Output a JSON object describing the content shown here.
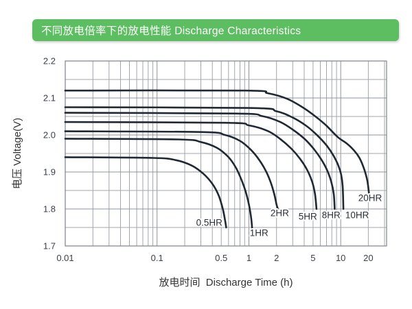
{
  "title_bar": {
    "text": "不同放电倍率下的放电性能 Discharge Characteristics",
    "bg_color": "#5cbd61",
    "text_color": "#ffffff"
  },
  "chart_data": {
    "type": "line",
    "title": "不同放电倍率下的放电性能 Discharge Characteristics",
    "xlabel": "放电时间  Discharge Time (h)",
    "ylabel": "电压 Voltage(V)",
    "x_scale": "log",
    "xlim": [
      0.01,
      31.6
    ],
    "ylim": [
      1.7,
      2.2
    ],
    "x_ticks": [
      {
        "v": 0.01,
        "label": "0.01"
      },
      {
        "v": 0.1,
        "label": "0.1"
      },
      {
        "v": 0.5,
        "label": "0.5"
      },
      {
        "v": 1,
        "label": "1"
      },
      {
        "v": 2,
        "label": "2"
      },
      {
        "v": 5,
        "label": "5"
      },
      {
        "v": 10,
        "label": "10"
      },
      {
        "v": 20,
        "label": "20"
      }
    ],
    "y_ticks": [
      {
        "v": 2.2,
        "label": "2.2"
      },
      {
        "v": 2.1,
        "label": "2.1"
      },
      {
        "v": 2.0,
        "label": "2.0"
      },
      {
        "v": 1.9,
        "label": "1.9"
      },
      {
        "v": 1.8,
        "label": "1.8"
      },
      {
        "v": 1.7,
        "label": "1.7"
      }
    ],
    "y_minor_step": 0.05,
    "grid": true,
    "legend": "inline-curve-labels",
    "colors": {
      "curve": "#202833",
      "grid": "#a2a6ad",
      "grid_major": "#8e939b",
      "axis": "#7c818a",
      "text": "#3b3f47",
      "label_text": "#2b303a"
    },
    "series": [
      {
        "name": "20HR",
        "label_pos": [
          20.9,
          1.83
        ],
        "points": [
          [
            0.01,
            2.12
          ],
          [
            0.9,
            2.12
          ],
          [
            1.6,
            2.113
          ],
          [
            2.6,
            2.098
          ],
          [
            4,
            2.072
          ],
          [
            5.5,
            2.047
          ],
          [
            7,
            2.025
          ],
          [
            9.3,
            1.994
          ],
          [
            11.5,
            1.978
          ],
          [
            14,
            1.958
          ],
          [
            16,
            1.938
          ],
          [
            18,
            1.908
          ],
          [
            19.5,
            1.876
          ],
          [
            20.3,
            1.843
          ]
        ]
      },
      {
        "name": "10HR",
        "label_pos": [
          15.1,
          1.783
        ],
        "points": [
          [
            0.01,
            2.075
          ],
          [
            1.0,
            2.073
          ],
          [
            2,
            2.064
          ],
          [
            3,
            2.047
          ],
          [
            4.2,
            2.025
          ],
          [
            5.5,
            2.0
          ],
          [
            7,
            1.972
          ],
          [
            8.3,
            1.945
          ],
          [
            9.4,
            1.918
          ],
          [
            10.1,
            1.893
          ],
          [
            10.5,
            1.862
          ],
          [
            10.7,
            1.8
          ]
        ]
      },
      {
        "name": "8HR",
        "label_pos": [
          7.87,
          1.783
        ],
        "points": [
          [
            0.01,
            2.06
          ],
          [
            0.7,
            2.058
          ],
          [
            1.4,
            2.051
          ],
          [
            2.2,
            2.035
          ],
          [
            3.1,
            2.012
          ],
          [
            4.1,
            1.988
          ],
          [
            5.1,
            1.962
          ],
          [
            6.1,
            1.935
          ],
          [
            7.1,
            1.905
          ],
          [
            7.9,
            1.873
          ],
          [
            8.4,
            1.84
          ],
          [
            8.6,
            1.8
          ]
        ]
      },
      {
        "name": "5HR",
        "label_pos": [
          4.38,
          1.78
        ],
        "points": [
          [
            0.01,
            2.035
          ],
          [
            0.55,
            2.033
          ],
          [
            1.0,
            2.026
          ],
          [
            1.6,
            2.011
          ],
          [
            2.2,
            1.989
          ],
          [
            2.9,
            1.963
          ],
          [
            3.6,
            1.936
          ],
          [
            4.3,
            1.906
          ],
          [
            4.9,
            1.873
          ],
          [
            5.25,
            1.84
          ],
          [
            5.45,
            1.8
          ]
        ]
      },
      {
        "name": "2HR",
        "label_pos": [
          2.17,
          1.789
        ],
        "points": [
          [
            0.01,
            2.01
          ],
          [
            0.3,
            2.008
          ],
          [
            0.55,
            2.0
          ],
          [
            0.8,
            1.984
          ],
          [
            1.05,
            1.96
          ],
          [
            1.3,
            1.932
          ],
          [
            1.55,
            1.9
          ],
          [
            1.75,
            1.868
          ],
          [
            1.9,
            1.838
          ],
          [
            2.0,
            1.812
          ],
          [
            2.07,
            1.8
          ]
        ]
      },
      {
        "name": "1HR",
        "label_pos": [
          1.29,
          1.735
        ],
        "points": [
          [
            0.01,
            1.99
          ],
          [
            0.17,
            1.988
          ],
          [
            0.3,
            1.981
          ],
          [
            0.45,
            1.965
          ],
          [
            0.6,
            1.94
          ],
          [
            0.72,
            1.912
          ],
          [
            0.82,
            1.882
          ],
          [
            0.92,
            1.848
          ],
          [
            1.0,
            1.812
          ],
          [
            1.06,
            1.775
          ],
          [
            1.09,
            1.74
          ]
        ]
      },
      {
        "name": "0.5HR",
        "label_pos": [
          0.37,
          1.763
        ],
        "points": [
          [
            0.01,
            1.94
          ],
          [
            0.09,
            1.938
          ],
          [
            0.16,
            1.932
          ],
          [
            0.24,
            1.917
          ],
          [
            0.32,
            1.895
          ],
          [
            0.4,
            1.868
          ],
          [
            0.47,
            1.836
          ],
          [
            0.52,
            1.8
          ],
          [
            0.55,
            1.77
          ],
          [
            0.566,
            1.75
          ]
        ]
      }
    ]
  }
}
